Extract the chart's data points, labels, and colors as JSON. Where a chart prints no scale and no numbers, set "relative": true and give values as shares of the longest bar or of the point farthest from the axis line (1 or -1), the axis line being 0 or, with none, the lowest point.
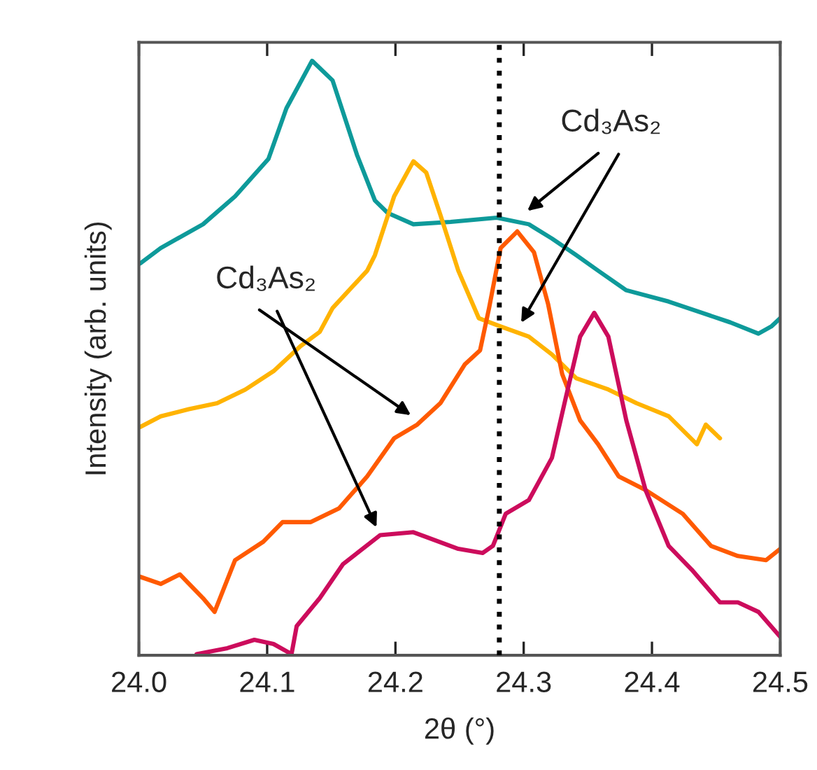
{
  "chart_data": {
    "type": "line",
    "relative": true,
    "xlabel": "2θ (°)",
    "ylabel": "Intensity (arb. units)",
    "xlim": [
      24.0,
      24.5
    ],
    "xticks": [
      {
        "value": 24.0,
        "label": "24.0"
      },
      {
        "value": 24.1,
        "label": "24.1"
      },
      {
        "value": 24.2,
        "label": "24.2"
      },
      {
        "value": 24.3,
        "label": "24.3"
      },
      {
        "value": 24.4,
        "label": "24.4"
      },
      {
        "value": 24.5,
        "label": "24.5"
      }
    ],
    "tick_labels": "x",
    "grid": false,
    "legend": false,
    "line_style": "solid",
    "marker": "none",
    "series": [
      {
        "color": "#0e9a9a",
        "x": [
          24.001,
          24.017,
          24.05,
          24.075,
          24.101,
          24.115,
          24.135,
          24.151,
          24.17,
          24.184,
          24.194,
          24.214,
          24.243,
          24.279,
          24.304,
          24.322,
          24.341,
          24.358,
          24.38,
          24.413,
          24.439,
          24.461,
          24.483,
          24.493,
          24.5
        ],
        "values": [
          0.659,
          0.685,
          0.725,
          0.772,
          0.835,
          0.92,
          1.0,
          0.967,
          0.842,
          0.765,
          0.744,
          0.725,
          0.729,
          0.736,
          0.725,
          0.701,
          0.673,
          0.647,
          0.614,
          0.595,
          0.576,
          0.56,
          0.541,
          0.553,
          0.567
        ]
      },
      {
        "color": "#ffb300",
        "x": [
          24.001,
          24.017,
          24.039,
          24.061,
          24.083,
          24.105,
          24.126,
          24.141,
          24.151,
          24.178,
          24.184,
          24.199,
          24.214,
          24.224,
          24.235,
          24.249,
          24.265,
          24.282,
          24.304,
          24.322,
          24.341,
          24.366,
          24.388,
          24.413,
          24.435,
          24.442,
          24.453
        ],
        "values": [
          0.384,
          0.402,
          0.414,
          0.424,
          0.447,
          0.478,
          0.52,
          0.544,
          0.584,
          0.647,
          0.673,
          0.772,
          0.831,
          0.812,
          0.741,
          0.647,
          0.567,
          0.553,
          0.536,
          0.506,
          0.466,
          0.447,
          0.424,
          0.402,
          0.355,
          0.388,
          0.365
        ]
      },
      {
        "color": "#ff5a00",
        "x": [
          24.001,
          24.017,
          24.032,
          24.05,
          24.059,
          24.075,
          24.097,
          24.112,
          24.134,
          24.156,
          24.178,
          24.199,
          24.217,
          24.235,
          24.254,
          24.266,
          24.273,
          24.282,
          24.295,
          24.308,
          24.319,
          24.33,
          24.344,
          24.358,
          24.374,
          24.395,
          24.424,
          24.446,
          24.467,
          24.489,
          24.5
        ],
        "values": [
          0.132,
          0.12,
          0.136,
          0.096,
          0.073,
          0.16,
          0.191,
          0.224,
          0.224,
          0.247,
          0.301,
          0.365,
          0.388,
          0.424,
          0.489,
          0.513,
          0.584,
          0.685,
          0.713,
          0.678,
          0.591,
          0.473,
          0.395,
          0.355,
          0.301,
          0.278,
          0.238,
          0.184,
          0.167,
          0.16,
          0.179
        ]
      },
      {
        "color": "#cc0c5c",
        "x": [
          24.045,
          24.069,
          24.09,
          24.105,
          24.119,
          24.123,
          24.141,
          24.159,
          24.188,
          24.214,
          24.249,
          24.268,
          24.276,
          24.286,
          24.304,
          24.322,
          24.333,
          24.344,
          24.355,
          24.366,
          24.38,
          24.395,
          24.413,
          24.431,
          24.453,
          24.467,
          24.483,
          24.5
        ],
        "values": [
          0.002,
          0.012,
          0.026,
          0.019,
          0.002,
          0.049,
          0.096,
          0.153,
          0.202,
          0.207,
          0.179,
          0.172,
          0.184,
          0.238,
          0.261,
          0.332,
          0.435,
          0.536,
          0.576,
          0.536,
          0.395,
          0.278,
          0.184,
          0.144,
          0.089,
          0.089,
          0.073,
          0.031
        ]
      }
    ],
    "ref_lines": [
      {
        "axis": "x",
        "value": 24.281,
        "color": "#000000",
        "line_style": "dotted"
      }
    ],
    "annotations": [
      "Cd₃As₂",
      "Cd₃As₂"
    ]
  }
}
